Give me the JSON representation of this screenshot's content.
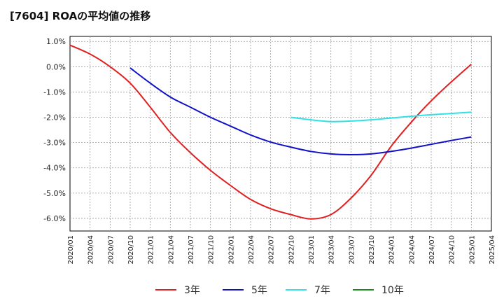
{
  "title": "[7604]  ROAの平均値の推移",
  "chart_data": {
    "type": "line",
    "title": "[7604]  ROAの平均値の推移",
    "xlabel": "",
    "ylabel": "",
    "ylim": [
      -6.5,
      1.2
    ],
    "y_ticks": [
      "1.0%",
      "0.0%",
      "-1.0%",
      "-2.0%",
      "-3.0%",
      "-4.0%",
      "-5.0%",
      "-6.0%"
    ],
    "y_tick_values": [
      1,
      0,
      -1,
      -2,
      -3,
      -4,
      -5,
      -6
    ],
    "x_ticks": [
      "2020/01",
      "2020/04",
      "2020/07",
      "2020/10",
      "2021/01",
      "2021/04",
      "2021/07",
      "2021/10",
      "2022/01",
      "2022/04",
      "2022/07",
      "2022/10",
      "2023/01",
      "2023/04",
      "2023/07",
      "2023/10",
      "2024/01",
      "2024/04",
      "2024/07",
      "2024/10",
      "2025/01",
      "2025/04"
    ],
    "grid": true,
    "legend_position": "bottom",
    "series": [
      {
        "name": "3年",
        "color": "#e02020",
        "points": [
          [
            "2020/01",
            0.85
          ],
          [
            "2020/04",
            0.5
          ],
          [
            "2020/07",
            0.0
          ],
          [
            "2020/10",
            -0.65
          ],
          [
            "2021/01",
            -1.6
          ],
          [
            "2021/04",
            -2.6
          ],
          [
            "2021/07",
            -3.4
          ],
          [
            "2021/10",
            -4.1
          ],
          [
            "2022/01",
            -4.7
          ],
          [
            "2022/04",
            -5.25
          ],
          [
            "2022/07",
            -5.62
          ],
          [
            "2022/10",
            -5.85
          ],
          [
            "2023/01",
            -6.02
          ],
          [
            "2023/04",
            -5.85
          ],
          [
            "2023/07",
            -5.2
          ],
          [
            "2023/10",
            -4.3
          ],
          [
            "2024/01",
            -3.15
          ],
          [
            "2024/04",
            -2.2
          ],
          [
            "2024/07",
            -1.35
          ],
          [
            "2024/10",
            -0.6
          ],
          [
            "2025/01",
            0.1
          ]
        ]
      },
      {
        "name": "5年",
        "color": "#1010c8",
        "points": [
          [
            "2020/10",
            -0.05
          ],
          [
            "2021/01",
            -0.65
          ],
          [
            "2021/04",
            -1.2
          ],
          [
            "2021/07",
            -1.6
          ],
          [
            "2021/10",
            -2.0
          ],
          [
            "2022/01",
            -2.35
          ],
          [
            "2022/04",
            -2.7
          ],
          [
            "2022/07",
            -2.98
          ],
          [
            "2022/10",
            -3.18
          ],
          [
            "2023/01",
            -3.35
          ],
          [
            "2023/04",
            -3.45
          ],
          [
            "2023/07",
            -3.48
          ],
          [
            "2023/10",
            -3.45
          ],
          [
            "2024/01",
            -3.35
          ],
          [
            "2024/04",
            -3.22
          ],
          [
            "2024/07",
            -3.07
          ],
          [
            "2024/10",
            -2.92
          ],
          [
            "2025/01",
            -2.78
          ]
        ]
      },
      {
        "name": "7年",
        "color": "#33e0e6",
        "points": [
          [
            "2022/10",
            -2.0
          ],
          [
            "2023/01",
            -2.1
          ],
          [
            "2023/04",
            -2.17
          ],
          [
            "2023/07",
            -2.15
          ],
          [
            "2023/10",
            -2.1
          ],
          [
            "2024/01",
            -2.03
          ],
          [
            "2024/04",
            -1.96
          ],
          [
            "2024/07",
            -1.9
          ],
          [
            "2024/10",
            -1.85
          ],
          [
            "2025/01",
            -1.8
          ]
        ]
      },
      {
        "name": "10年",
        "color": "#1a8a1a",
        "points": []
      }
    ]
  }
}
